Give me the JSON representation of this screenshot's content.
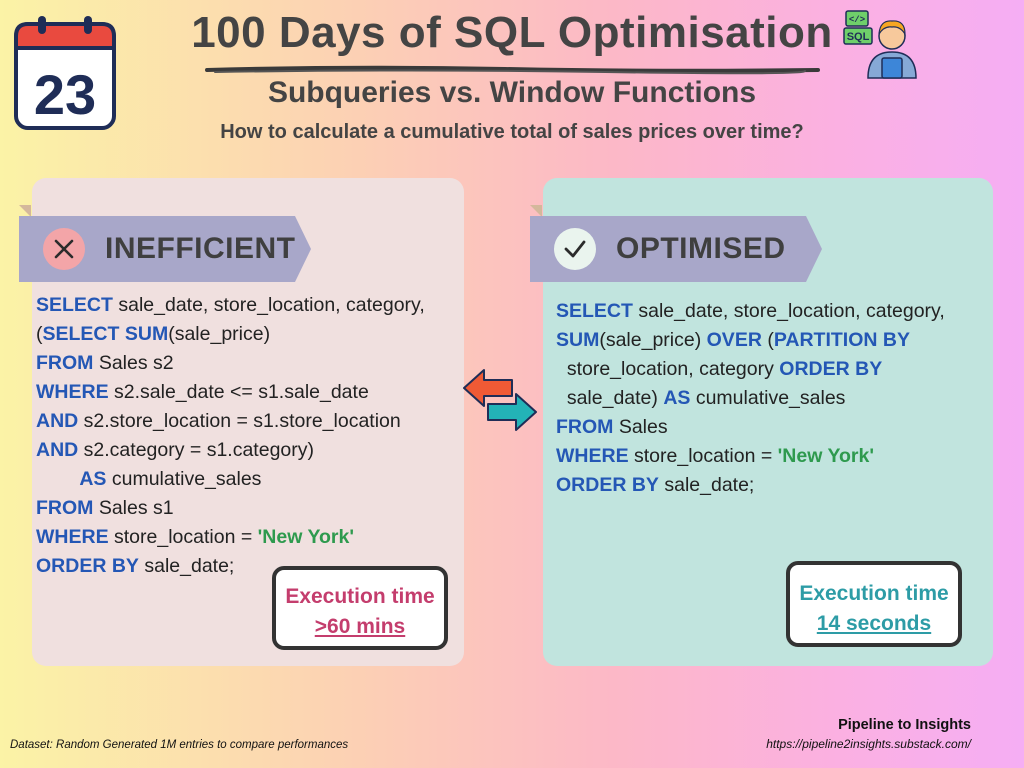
{
  "header": {
    "calendar_day": "23",
    "title": "100 Days of SQL Optimisation",
    "subtitle": "Subqueries vs. Window Functions",
    "question": "How to calculate a cumulative total of sales prices over time?",
    "sql_badge": "SQL",
    "code_badge": "</>"
  },
  "left_panel": {
    "label": "INEFFICIENT",
    "icon": "x-mark-icon",
    "execution_label": "Execution time",
    "execution_value": ">60 mins"
  },
  "right_panel": {
    "label": "OPTIMISED",
    "icon": "check-mark-icon",
    "execution_label": "Execution time",
    "execution_value": "14 seconds"
  },
  "footer": {
    "brand": "Pipeline to Insights",
    "url": "https://pipeline2insights.substack.com/",
    "dataset_note": "Dataset: Random Generated 1M entries to compare performances"
  },
  "colors": {
    "keyword": "#2457b5",
    "string": "#2e9a4e",
    "inefficient_exec": "#c43d6d",
    "optimised_exec": "#2d9ca6",
    "left_card": "#f0e0df",
    "right_card": "#c1e4de",
    "banner": "#a8a7c9"
  },
  "code": {
    "left": [
      [
        {
          "t": "SELECT",
          "k": "kw"
        },
        {
          "t": " sale_date, store_location, category,"
        }
      ],
      [
        {
          "t": "("
        },
        {
          "t": "SELECT",
          "k": "kw"
        },
        {
          "t": " "
        },
        {
          "t": "SUM",
          "k": "kw"
        },
        {
          "t": "(sale_price)"
        }
      ],
      [
        {
          "t": "FROM",
          "k": "kw"
        },
        {
          "t": " Sales s2"
        }
      ],
      [
        {
          "t": "WHERE",
          "k": "kw"
        },
        {
          "t": " s2.sale_date <= s1.sale_date"
        }
      ],
      [
        {
          "t": "AND",
          "k": "kw"
        },
        {
          "t": " s2.store_location = s1.store_location"
        }
      ],
      [
        {
          "t": "AND",
          "k": "kw"
        },
        {
          "t": " s2.category = s1.category)"
        }
      ],
      [
        {
          "t": "        "
        },
        {
          "t": "AS",
          "k": "kw"
        },
        {
          "t": " cumulative_sales"
        }
      ],
      [
        {
          "t": "FROM",
          "k": "kw"
        },
        {
          "t": " Sales s1"
        }
      ],
      [
        {
          "t": "WHERE",
          "k": "kw"
        },
        {
          "t": " store_location = "
        },
        {
          "t": "'New York'",
          "k": "str"
        }
      ],
      [
        {
          "t": "ORDER BY",
          "k": "kw"
        },
        {
          "t": " sale_date;"
        }
      ]
    ],
    "right": [
      [
        {
          "t": "SELECT",
          "k": "kw"
        },
        {
          "t": " sale_date, store_location, category,"
        }
      ],
      [
        {
          "t": "SUM",
          "k": "kw"
        },
        {
          "t": "(sale_price) "
        },
        {
          "t": "OVER",
          "k": "kw"
        },
        {
          "t": " ("
        },
        {
          "t": "PARTITION BY",
          "k": "kw"
        }
      ],
      [
        {
          "t": "  store_location, category "
        },
        {
          "t": "ORDER BY",
          "k": "kw"
        }
      ],
      [
        {
          "t": "  sale_date) "
        },
        {
          "t": "AS",
          "k": "kw"
        },
        {
          "t": " cumulative_sales"
        }
      ],
      [
        {
          "t": "FROM",
          "k": "kw"
        },
        {
          "t": " Sales"
        }
      ],
      [
        {
          "t": "WHERE",
          "k": "kw"
        },
        {
          "t": " store_location = "
        },
        {
          "t": "'New York'",
          "k": "str"
        }
      ],
      [
        {
          "t": "ORDER BY",
          "k": "kw"
        },
        {
          "t": " sale_date;"
        }
      ]
    ]
  }
}
